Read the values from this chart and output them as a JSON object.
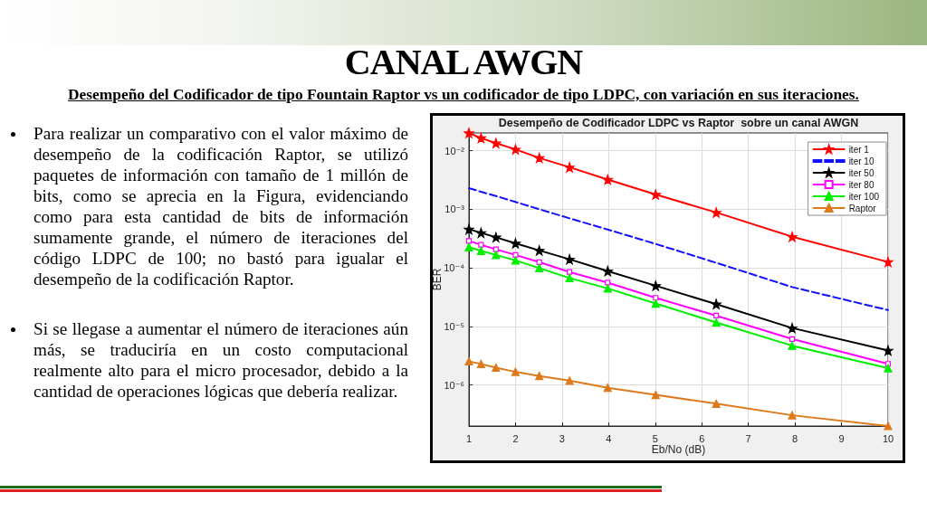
{
  "chart_data": {
    "type": "line",
    "title": "Desempeño de Codificador LDPC vs Raptor  sobre un canal AWGN",
    "xlabel": "Eb/No (dB)",
    "ylabel": "BER",
    "annotations": [
      "CANAL AWGN",
      "Desempeño del Codificador de tipo Fountain Raptor vs un codificador de tipo LDPC, con variación en sus iteraciones.",
      "Para realizar un comparativo con el valor máximo de desempeño de la codificación Raptor, se utilizó paquetes de información con tamaño de 1 millón de bits, como se aprecia en la Figura, evidenciando como para esta cantidad de bits de información sumamente grande, el número de iteraciones del código LDPC de 100; no bastó para igualar el desempeño de la codificación Raptor.",
      "Si se llegase a aumentar el número de iteraciones aún más, se traduciría en un costo computacional realmente alto para el micro procesador, debido a la cantidad de operaciones lógicas que debería realizar."
    ],
    "x": [
      1,
      1.26,
      1.58,
      2,
      2.51,
      3.16,
      3.98,
      5.01,
      6.31,
      7.94,
      10
    ],
    "series": [
      {
        "name": "iter 1",
        "color": "#ff0000",
        "marker": "star",
        "line_style": "solid",
        "values": [
          0.02,
          0.0164,
          0.0134,
          0.0105,
          0.0075,
          0.0052,
          0.0032,
          0.00178,
          0.00088,
          0.00034,
          0.000126
        ]
      },
      {
        "name": "iter 10",
        "color": "#1010ff",
        "marker": "none",
        "line_style": "dashed",
        "values": [
          0.00229,
          0.00198,
          0.00168,
          0.00133,
          0.001,
          0.0007,
          0.00045,
          0.000256,
          0.000122,
          4.7e-05,
          1.9e-05
        ]
      },
      {
        "name": "iter 50",
        "color": "#000000",
        "marker": "star",
        "line_style": "solid",
        "values": [
          0.000456,
          0.000396,
          0.000332,
          0.000262,
          0.000198,
          0.00014,
          8.8e-05,
          4.95e-05,
          2.4e-05,
          9.4e-06,
          3.9e-06
        ]
      },
      {
        "name": "iter 80",
        "color": "#ff00ff",
        "marker": "square",
        "line_style": "solid",
        "values": [
          0.000288,
          0.000247,
          0.000207,
          0.000166,
          0.000125,
          8.5e-05,
          5.6e-05,
          3.08e-05,
          1.53e-05,
          6.1e-06,
          2.3e-06
        ]
      },
      {
        "name": "iter 100",
        "color": "#00ee00",
        "marker": "triangle",
        "line_style": "solid",
        "values": [
          0.000225,
          0.000195,
          0.000166,
          0.000134,
          9.9e-05,
          6.7e-05,
          4.45e-05,
          2.46e-05,
          1.17e-05,
          4.7e-06,
          1.94e-06
        ]
      },
      {
        "name": "Raptor",
        "color": "#dd7a1c",
        "marker": "triangle",
        "line_style": "solid",
        "values": [
          2.54e-06,
          2.29e-06,
          1.98e-06,
          1.68e-06,
          1.43e-06,
          1.19e-06,
          9e-07,
          6.8e-07,
          4.8e-07,
          3.05e-07,
          2e-07
        ]
      }
    ],
    "xlim": [
      1,
      10
    ],
    "xticks": [
      1,
      2,
      3,
      4,
      5,
      6,
      7,
      8,
      9,
      10
    ],
    "ylim": [
      2e-07,
      0.02
    ],
    "yticks": [
      {
        "value": 1e-06,
        "label": "10⁻⁶"
      },
      {
        "value": 1e-05,
        "label": "10⁻⁵"
      },
      {
        "value": 0.0001,
        "label": "10⁻⁴"
      },
      {
        "value": 0.001,
        "label": "10⁻³"
      },
      {
        "value": 0.01,
        "label": "10⁻²"
      }
    ],
    "log": "y",
    "grid": true,
    "legend": "top right"
  }
}
